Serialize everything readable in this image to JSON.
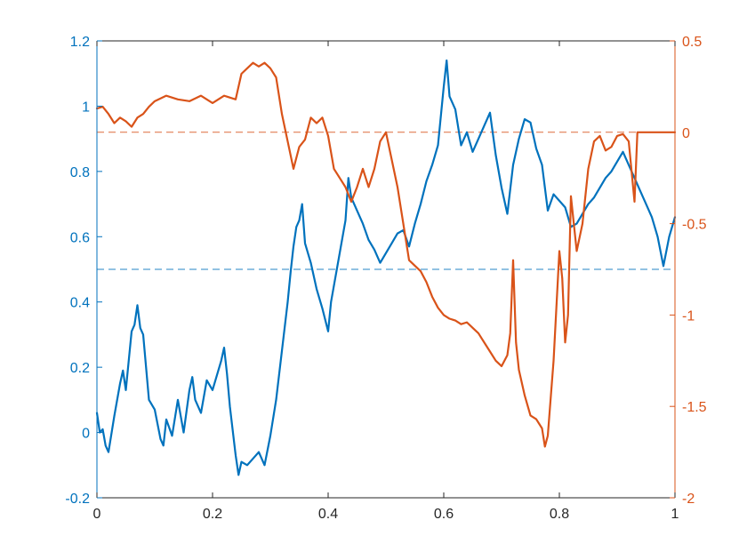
{
  "chart_data": {
    "type": "line",
    "grid": false,
    "legend": "none",
    "colors": {
      "left": "#0072BD",
      "right": "#D95319",
      "frame": "#262626",
      "background": "#ffffff"
    },
    "x_axis": {
      "range": [
        0,
        1
      ],
      "ticks": [
        0,
        0.2,
        0.4,
        0.6,
        0.8,
        1
      ],
      "tick_labels": [
        "0",
        "0.2",
        "0.4",
        "0.6",
        "0.8",
        "1"
      ]
    },
    "y_left": {
      "range": [
        -0.2,
        1.2
      ],
      "ticks": [
        -0.2,
        0,
        0.2,
        0.4,
        0.6,
        0.8,
        1,
        1.2
      ],
      "tick_labels": [
        "-0.2",
        "0",
        "0.2",
        "0.4",
        "0.6",
        "0.8",
        "1",
        "1.2"
      ]
    },
    "y_right": {
      "range": [
        -2,
        0.5
      ],
      "ticks": [
        -2,
        -1.5,
        -1,
        -0.5,
        0,
        0.5
      ],
      "tick_labels": [
        "-2",
        "-1.5",
        "-1",
        "-0.5",
        "0",
        "0.5"
      ]
    },
    "reference_lines": [
      {
        "axis": "left",
        "y": 0.5,
        "style": "dashed"
      },
      {
        "axis": "right",
        "y": 0,
        "style": "dashed"
      }
    ],
    "series": [
      {
        "axis": "left",
        "x": [
          0,
          0.005,
          0.01,
          0.015,
          0.02,
          0.03,
          0.04,
          0.045,
          0.05,
          0.055,
          0.06,
          0.065,
          0.07,
          0.075,
          0.08,
          0.09,
          0.1,
          0.11,
          0.115,
          0.12,
          0.13,
          0.14,
          0.15,
          0.16,
          0.165,
          0.17,
          0.18,
          0.19,
          0.2,
          0.21,
          0.215,
          0.22,
          0.225,
          0.23,
          0.24,
          0.245,
          0.25,
          0.26,
          0.27,
          0.28,
          0.29,
          0.3,
          0.31,
          0.32,
          0.33,
          0.335,
          0.34,
          0.345,
          0.35,
          0.355,
          0.36,
          0.37,
          0.38,
          0.39,
          0.4,
          0.405,
          0.41,
          0.42,
          0.43,
          0.435,
          0.44,
          0.45,
          0.46,
          0.47,
          0.48,
          0.49,
          0.5,
          0.51,
          0.52,
          0.53,
          0.54,
          0.55,
          0.56,
          0.57,
          0.58,
          0.59,
          0.6,
          0.605,
          0.61,
          0.62,
          0.63,
          0.64,
          0.65,
          0.66,
          0.67,
          0.68,
          0.69,
          0.7,
          0.71,
          0.72,
          0.73,
          0.74,
          0.75,
          0.76,
          0.77,
          0.78,
          0.79,
          0.8,
          0.81,
          0.82,
          0.83,
          0.84,
          0.85,
          0.86,
          0.87,
          0.88,
          0.89,
          0.9,
          0.91,
          0.92,
          0.93,
          0.94,
          0.95,
          0.96,
          0.97,
          0.98,
          0.99,
          1
        ],
        "y": [
          0.06,
          0.0,
          0.01,
          -0.04,
          -0.06,
          0.05,
          0.15,
          0.19,
          0.13,
          0.22,
          0.31,
          0.33,
          0.39,
          0.32,
          0.3,
          0.1,
          0.07,
          -0.02,
          -0.04,
          0.04,
          -0.01,
          0.1,
          0.0,
          0.13,
          0.17,
          0.1,
          0.06,
          0.16,
          0.13,
          0.19,
          0.22,
          0.26,
          0.18,
          0.08,
          -0.07,
          -0.13,
          -0.09,
          -0.1,
          -0.08,
          -0.06,
          -0.1,
          -0.01,
          0.1,
          0.25,
          0.4,
          0.49,
          0.57,
          0.63,
          0.65,
          0.7,
          0.58,
          0.52,
          0.44,
          0.38,
          0.31,
          0.4,
          0.45,
          0.55,
          0.65,
          0.78,
          0.72,
          0.68,
          0.64,
          0.59,
          0.56,
          0.52,
          0.55,
          0.58,
          0.61,
          0.62,
          0.57,
          0.64,
          0.7,
          0.77,
          0.82,
          0.88,
          1.06,
          1.14,
          1.03,
          0.99,
          0.88,
          0.92,
          0.86,
          0.9,
          0.94,
          0.98,
          0.85,
          0.75,
          0.67,
          0.82,
          0.9,
          0.96,
          0.95,
          0.87,
          0.82,
          0.68,
          0.73,
          0.71,
          0.69,
          0.63,
          0.64,
          0.67,
          0.7,
          0.72,
          0.75,
          0.78,
          0.8,
          0.83,
          0.86,
          0.82,
          0.78,
          0.74,
          0.7,
          0.66,
          0.6,
          0.51,
          0.6,
          0.66
        ]
      },
      {
        "axis": "right",
        "x": [
          0,
          0.01,
          0.02,
          0.03,
          0.04,
          0.05,
          0.06,
          0.07,
          0.08,
          0.09,
          0.1,
          0.12,
          0.14,
          0.16,
          0.18,
          0.2,
          0.22,
          0.24,
          0.25,
          0.26,
          0.27,
          0.28,
          0.29,
          0.3,
          0.31,
          0.32,
          0.33,
          0.34,
          0.35,
          0.36,
          0.37,
          0.38,
          0.39,
          0.4,
          0.41,
          0.42,
          0.43,
          0.44,
          0.45,
          0.46,
          0.47,
          0.48,
          0.49,
          0.5,
          0.51,
          0.52,
          0.53,
          0.54,
          0.55,
          0.56,
          0.57,
          0.58,
          0.59,
          0.6,
          0.61,
          0.62,
          0.63,
          0.64,
          0.65,
          0.66,
          0.67,
          0.68,
          0.69,
          0.7,
          0.71,
          0.715,
          0.72,
          0.725,
          0.73,
          0.74,
          0.75,
          0.76,
          0.77,
          0.775,
          0.78,
          0.79,
          0.8,
          0.805,
          0.81,
          0.815,
          0.82,
          0.83,
          0.84,
          0.85,
          0.86,
          0.87,
          0.88,
          0.89,
          0.9,
          0.91,
          0.92,
          0.93,
          0.935,
          0.94,
          0.95,
          1
        ],
        "y": [
          0.13,
          0.14,
          0.1,
          0.05,
          0.08,
          0.06,
          0.03,
          0.08,
          0.1,
          0.14,
          0.17,
          0.2,
          0.18,
          0.17,
          0.2,
          0.16,
          0.2,
          0.18,
          0.32,
          0.35,
          0.38,
          0.36,
          0.38,
          0.35,
          0.3,
          0.1,
          -0.05,
          -0.2,
          -0.08,
          -0.04,
          0.08,
          0.05,
          0.08,
          -0.02,
          -0.2,
          -0.25,
          -0.3,
          -0.38,
          -0.3,
          -0.2,
          -0.3,
          -0.2,
          -0.05,
          0.0,
          -0.15,
          -0.3,
          -0.5,
          -0.7,
          -0.73,
          -0.76,
          -0.82,
          -0.9,
          -0.96,
          -1.0,
          -1.02,
          -1.03,
          -1.05,
          -1.04,
          -1.07,
          -1.1,
          -1.15,
          -1.2,
          -1.25,
          -1.28,
          -1.22,
          -1.1,
          -0.7,
          -1.15,
          -1.3,
          -1.44,
          -1.55,
          -1.57,
          -1.62,
          -1.72,
          -1.66,
          -1.25,
          -0.65,
          -0.8,
          -1.15,
          -1.0,
          -0.35,
          -0.65,
          -0.5,
          -0.2,
          -0.05,
          -0.02,
          -0.1,
          -0.08,
          -0.02,
          -0.01,
          -0.05,
          -0.38,
          0.0,
          0.0,
          0.0,
          0.0
        ]
      }
    ]
  }
}
